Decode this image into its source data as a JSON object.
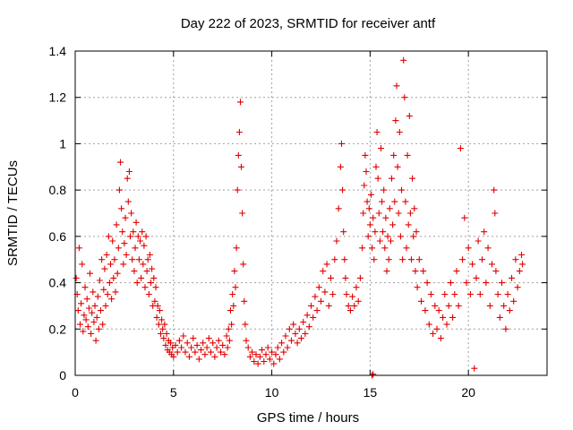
{
  "chart_data": {
    "type": "scatter",
    "title": "Day 222 of 2023, SRMTID for receiver antf",
    "xlabel": "GPS time / hours",
    "ylabel": "SRMTID / TECUs",
    "xlim": [
      0,
      24
    ],
    "ylim": [
      0,
      1.4
    ],
    "xticks": [
      0,
      5,
      10,
      15,
      20
    ],
    "xtick_labels": [
      "0",
      "5",
      "10",
      "15",
      "20"
    ],
    "yticks": [
      0,
      0.2,
      0.4,
      0.6,
      0.8,
      1.0,
      1.2,
      1.4
    ],
    "ytick_labels": [
      "0",
      "0.2",
      "0.4",
      "0.6",
      "0.8",
      "1",
      "1.2",
      "1.4"
    ],
    "grid": true,
    "marker": "+",
    "color": "#e00000",
    "series": [
      {
        "name": "SRMTID",
        "points": [
          [
            0.05,
            0.42
          ],
          [
            0.1,
            0.35
          ],
          [
            0.15,
            0.28
          ],
          [
            0.2,
            0.55
          ],
          [
            0.25,
            0.22
          ],
          [
            0.3,
            0.31
          ],
          [
            0.35,
            0.48
          ],
          [
            0.4,
            0.19
          ],
          [
            0.45,
            0.26
          ],
          [
            0.5,
            0.38
          ],
          [
            0.55,
            0.24
          ],
          [
            0.6,
            0.33
          ],
          [
            0.65,
            0.21
          ],
          [
            0.7,
            0.29
          ],
          [
            0.75,
            0.44
          ],
          [
            0.8,
            0.18
          ],
          [
            0.85,
            0.27
          ],
          [
            0.9,
            0.36
          ],
          [
            0.95,
            0.23
          ],
          [
            1.0,
            0.3
          ],
          [
            1.05,
            0.15
          ],
          [
            1.1,
            0.25
          ],
          [
            1.15,
            0.34
          ],
          [
            1.2,
            0.2
          ],
          [
            1.25,
            0.41
          ],
          [
            1.3,
            0.28
          ],
          [
            1.35,
            0.5
          ],
          [
            1.4,
            0.22
          ],
          [
            1.45,
            0.37
          ],
          [
            1.5,
            0.46
          ],
          [
            1.55,
            0.3
          ],
          [
            1.6,
            0.52
          ],
          [
            1.65,
            0.35
          ],
          [
            1.7,
            0.6
          ],
          [
            1.75,
            0.4
          ],
          [
            1.8,
            0.48
          ],
          [
            1.85,
            0.33
          ],
          [
            1.9,
            0.58
          ],
          [
            1.95,
            0.42
          ],
          [
            2.0,
            0.5
          ],
          [
            2.05,
            0.36
          ],
          [
            2.1,
            0.65
          ],
          [
            2.15,
            0.44
          ],
          [
            2.2,
            0.55
          ],
          [
            2.25,
            0.8
          ],
          [
            2.3,
            0.92
          ],
          [
            2.35,
            0.72
          ],
          [
            2.4,
            0.62
          ],
          [
            2.45,
            0.48
          ],
          [
            2.5,
            0.57
          ],
          [
            2.55,
            0.68
          ],
          [
            2.6,
            0.52
          ],
          [
            2.65,
            0.85
          ],
          [
            2.7,
            0.75
          ],
          [
            2.75,
            0.88
          ],
          [
            2.8,
            0.6
          ],
          [
            2.85,
            0.7
          ],
          [
            2.9,
            0.5
          ],
          [
            2.95,
            0.62
          ],
          [
            3.0,
            0.45
          ],
          [
            3.05,
            0.55
          ],
          [
            3.1,
            0.66
          ],
          [
            3.15,
            0.4
          ],
          [
            3.2,
            0.6
          ],
          [
            3.25,
            0.5
          ],
          [
            3.3,
            0.58
          ],
          [
            3.35,
            0.42
          ],
          [
            3.4,
            0.62
          ],
          [
            3.45,
            0.48
          ],
          [
            3.5,
            0.56
          ],
          [
            3.55,
            0.38
          ],
          [
            3.6,
            0.6
          ],
          [
            3.65,
            0.45
          ],
          [
            3.7,
            0.5
          ],
          [
            3.75,
            0.35
          ],
          [
            3.8,
            0.52
          ],
          [
            3.85,
            0.4
          ],
          [
            3.9,
            0.46
          ],
          [
            3.95,
            0.3
          ],
          [
            4.0,
            0.42
          ],
          [
            4.05,
            0.32
          ],
          [
            4.1,
            0.38
          ],
          [
            4.15,
            0.25
          ],
          [
            4.2,
            0.3
          ],
          [
            4.25,
            0.22
          ],
          [
            4.3,
            0.28
          ],
          [
            4.35,
            0.18
          ],
          [
            4.4,
            0.24
          ],
          [
            4.45,
            0.2
          ],
          [
            4.5,
            0.16
          ],
          [
            4.55,
            0.22
          ],
          [
            4.6,
            0.13
          ],
          [
            4.65,
            0.18
          ],
          [
            4.7,
            0.11
          ],
          [
            4.75,
            0.15
          ],
          [
            4.8,
            0.1
          ],
          [
            4.85,
            0.14
          ],
          [
            4.9,
            0.09
          ],
          [
            4.95,
            0.12
          ],
          [
            5.0,
            0.08
          ],
          [
            5.1,
            0.13
          ],
          [
            5.2,
            0.1
          ],
          [
            5.3,
            0.15
          ],
          [
            5.4,
            0.12
          ],
          [
            5.5,
            0.17
          ],
          [
            5.6,
            0.1
          ],
          [
            5.7,
            0.14
          ],
          [
            5.8,
            0.08
          ],
          [
            5.9,
            0.12
          ],
          [
            6.0,
            0.16
          ],
          [
            6.1,
            0.1
          ],
          [
            6.2,
            0.13
          ],
          [
            6.3,
            0.07
          ],
          [
            6.4,
            0.11
          ],
          [
            6.5,
            0.14
          ],
          [
            6.6,
            0.09
          ],
          [
            6.7,
            0.12
          ],
          [
            6.8,
            0.16
          ],
          [
            6.9,
            0.1
          ],
          [
            7.0,
            0.14
          ],
          [
            7.1,
            0.08
          ],
          [
            7.2,
            0.12
          ],
          [
            7.3,
            0.15
          ],
          [
            7.4,
            0.1
          ],
          [
            7.5,
            0.13
          ],
          [
            7.6,
            0.09
          ],
          [
            7.7,
            0.17
          ],
          [
            7.75,
            0.12
          ],
          [
            7.8,
            0.2
          ],
          [
            7.85,
            0.15
          ],
          [
            7.9,
            0.28
          ],
          [
            7.95,
            0.22
          ],
          [
            8.0,
            0.35
          ],
          [
            8.05,
            0.3
          ],
          [
            8.1,
            0.45
          ],
          [
            8.15,
            0.38
          ],
          [
            8.2,
            0.55
          ],
          [
            8.25,
            0.8
          ],
          [
            8.3,
            0.95
          ],
          [
            8.35,
            1.05
          ],
          [
            8.4,
            1.18
          ],
          [
            8.45,
            0.9
          ],
          [
            8.5,
            0.7
          ],
          [
            8.55,
            0.48
          ],
          [
            8.6,
            0.32
          ],
          [
            8.65,
            0.22
          ],
          [
            8.7,
            0.15
          ],
          [
            8.8,
            0.12
          ],
          [
            8.9,
            0.08
          ],
          [
            9.0,
            0.1
          ],
          [
            9.1,
            0.06
          ],
          [
            9.2,
            0.09
          ],
          [
            9.3,
            0.05
          ],
          [
            9.4,
            0.08
          ],
          [
            9.5,
            0.11
          ],
          [
            9.6,
            0.06
          ],
          [
            9.7,
            0.09
          ],
          [
            9.8,
            0.12
          ],
          [
            9.9,
            0.07
          ],
          [
            10.0,
            0.1
          ],
          [
            10.1,
            0.05
          ],
          [
            10.2,
            0.09
          ],
          [
            10.3,
            0.12
          ],
          [
            10.4,
            0.07
          ],
          [
            10.5,
            0.14
          ],
          [
            10.6,
            0.1
          ],
          [
            10.7,
            0.17
          ],
          [
            10.8,
            0.12
          ],
          [
            10.9,
            0.2
          ],
          [
            11.0,
            0.15
          ],
          [
            11.1,
            0.22
          ],
          [
            11.2,
            0.18
          ],
          [
            11.3,
            0.14
          ],
          [
            11.4,
            0.2
          ],
          [
            11.5,
            0.16
          ],
          [
            11.6,
            0.23
          ],
          [
            11.7,
            0.18
          ],
          [
            11.8,
            0.26
          ],
          [
            11.9,
            0.21
          ],
          [
            12.0,
            0.3
          ],
          [
            12.1,
            0.25
          ],
          [
            12.2,
            0.34
          ],
          [
            12.3,
            0.28
          ],
          [
            12.4,
            0.38
          ],
          [
            12.5,
            0.32
          ],
          [
            12.6,
            0.45
          ],
          [
            12.7,
            0.36
          ],
          [
            12.8,
            0.48
          ],
          [
            12.9,
            0.3
          ],
          [
            13.0,
            0.42
          ],
          [
            13.1,
            0.35
          ],
          [
            13.2,
            0.5
          ],
          [
            13.3,
            0.58
          ],
          [
            13.4,
            0.72
          ],
          [
            13.5,
            0.9
          ],
          [
            13.55,
            1.0
          ],
          [
            13.6,
            0.8
          ],
          [
            13.65,
            0.62
          ],
          [
            13.7,
            0.5
          ],
          [
            13.75,
            0.42
          ],
          [
            13.8,
            0.35
          ],
          [
            13.9,
            0.3
          ],
          [
            14.0,
            0.28
          ],
          [
            14.1,
            0.34
          ],
          [
            14.2,
            0.3
          ],
          [
            14.3,
            0.38
          ],
          [
            14.4,
            0.32
          ],
          [
            14.5,
            0.42
          ],
          [
            14.6,
            0.55
          ],
          [
            14.65,
            0.7
          ],
          [
            14.7,
            0.82
          ],
          [
            14.75,
            0.95
          ],
          [
            14.8,
            0.88
          ],
          [
            14.85,
            0.75
          ],
          [
            14.9,
            0.6
          ],
          [
            14.95,
            0.72
          ],
          [
            15.0,
            0.65
          ],
          [
            15.05,
            0.78
          ],
          [
            15.1,
            0.55
          ],
          [
            15.15,
            0.68
          ],
          [
            15.2,
            0.5
          ],
          [
            15.25,
            0.62
          ],
          [
            15.3,
            0.9
          ],
          [
            15.35,
            1.05
          ],
          [
            15.4,
            0.85
          ],
          [
            15.45,
            0.7
          ],
          [
            15.5,
            0.58
          ],
          [
            15.55,
            0.98
          ],
          [
            15.6,
            0.75
          ],
          [
            15.65,
            0.62
          ],
          [
            15.7,
            0.8
          ],
          [
            15.75,
            0.55
          ],
          [
            15.8,
            0.68
          ],
          [
            15.85,
            0.45
          ],
          [
            15.9,
            0.6
          ],
          [
            15.95,
            0.5
          ],
          [
            16.0,
            0.72
          ],
          [
            16.05,
            0.58
          ],
          [
            16.1,
            0.85
          ],
          [
            16.15,
            0.65
          ],
          [
            16.2,
            0.95
          ],
          [
            16.25,
            0.75
          ],
          [
            16.3,
            1.1
          ],
          [
            16.35,
            1.25
          ],
          [
            16.4,
            0.9
          ],
          [
            16.45,
            0.7
          ],
          [
            16.5,
            1.05
          ],
          [
            16.55,
            0.6
          ],
          [
            16.6,
            0.8
          ],
          [
            16.65,
            0.5
          ],
          [
            16.7,
            1.36
          ],
          [
            16.75,
            1.2
          ],
          [
            16.8,
            0.75
          ],
          [
            16.85,
            0.55
          ],
          [
            16.9,
            0.95
          ],
          [
            16.95,
            0.65
          ],
          [
            17.0,
            1.12
          ],
          [
            17.05,
            0.7
          ],
          [
            17.1,
            0.5
          ],
          [
            17.15,
            0.85
          ],
          [
            17.2,
            0.6
          ],
          [
            17.25,
            0.72
          ],
          [
            17.3,
            0.45
          ],
          [
            17.35,
            0.62
          ],
          [
            17.4,
            0.38
          ],
          [
            17.5,
            0.5
          ],
          [
            17.6,
            0.32
          ],
          [
            17.7,
            0.45
          ],
          [
            17.8,
            0.28
          ],
          [
            17.9,
            0.4
          ],
          [
            18.0,
            0.22
          ],
          [
            18.1,
            0.35
          ],
          [
            18.2,
            0.18
          ],
          [
            18.3,
            0.3
          ],
          [
            18.4,
            0.2
          ],
          [
            18.5,
            0.28
          ],
          [
            18.6,
            0.16
          ],
          [
            18.7,
            0.25
          ],
          [
            18.8,
            0.35
          ],
          [
            18.9,
            0.22
          ],
          [
            19.0,
            0.3
          ],
          [
            19.1,
            0.4
          ],
          [
            19.2,
            0.25
          ],
          [
            19.3,
            0.35
          ],
          [
            19.4,
            0.45
          ],
          [
            19.5,
            0.3
          ],
          [
            19.6,
            0.98
          ],
          [
            19.7,
            0.5
          ],
          [
            19.8,
            0.68
          ],
          [
            19.9,
            0.4
          ],
          [
            20.0,
            0.55
          ],
          [
            20.1,
            0.35
          ],
          [
            20.2,
            0.48
          ],
          [
            20.3,
            0.03
          ],
          [
            20.4,
            0.42
          ],
          [
            20.5,
            0.58
          ],
          [
            20.6,
            0.35
          ],
          [
            20.7,
            0.5
          ],
          [
            20.8,
            0.62
          ],
          [
            20.9,
            0.4
          ],
          [
            21.0,
            0.55
          ],
          [
            21.1,
            0.3
          ],
          [
            21.2,
            0.48
          ],
          [
            21.3,
            0.8
          ],
          [
            21.35,
            0.7
          ],
          [
            21.4,
            0.45
          ],
          [
            21.5,
            0.35
          ],
          [
            21.6,
            0.25
          ],
          [
            21.7,
            0.4
          ],
          [
            21.8,
            0.3
          ],
          [
            21.9,
            0.2
          ],
          [
            22.0,
            0.35
          ],
          [
            22.1,
            0.28
          ],
          [
            22.2,
            0.42
          ],
          [
            22.3,
            0.32
          ],
          [
            22.4,
            0.5
          ],
          [
            22.5,
            0.38
          ],
          [
            22.6,
            0.45
          ],
          [
            22.7,
            0.52
          ],
          [
            22.75,
            0.48
          ],
          [
            15.1,
            0.0
          ],
          [
            15.15,
            0.005
          ]
        ]
      }
    ]
  }
}
